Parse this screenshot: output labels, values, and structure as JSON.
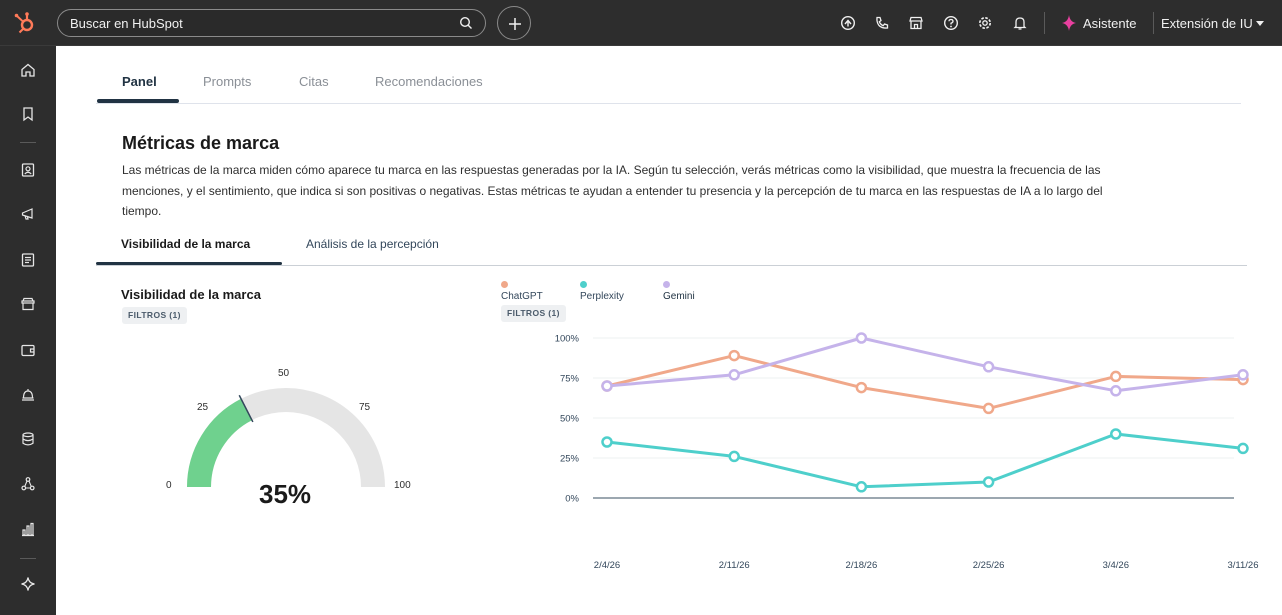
{
  "topbar": {
    "search_placeholder": "Buscar en HubSpot",
    "assistant_label": "Asistente",
    "extension_label": "Extensión de IU",
    "brand_color": "#ff7a59",
    "icons": [
      "upgrade-icon",
      "phone-icon",
      "marketplace-icon",
      "help-icon",
      "settings-icon",
      "notifications-icon"
    ]
  },
  "sidebar": {
    "icons": [
      "home-icon",
      "bookmark-icon",
      "contacts-icon",
      "marketing-icon",
      "content-icon",
      "commerce-icon",
      "wallet-icon",
      "service-icon",
      "data-icon",
      "automation-icon",
      "reports-icon",
      "ai-sparkle-icon"
    ]
  },
  "tabs": [
    {
      "label": "Panel",
      "active": true
    },
    {
      "label": "Prompts",
      "active": false
    },
    {
      "label": "Citas",
      "active": false
    },
    {
      "label": "Recomendaciones",
      "active": false
    }
  ],
  "section": {
    "title": "Métricas de marca",
    "description_lines": [
      "Las métricas de la marca miden cómo aparece tu marca en las respuestas generadas por la IA. Según tu selección, verás métricas como la visibilidad, que muestra la frecuencia de las",
      "menciones, y el sentimiento, que indica si son positivas o negativas. Estas métricas te ayudan a entender tu presencia y la percepción de tu marca en las respuestas de IA a lo largo del",
      "tiempo."
    ]
  },
  "subtabs": [
    {
      "label": "Visibilidad de la marca",
      "active": true
    },
    {
      "label": "Análisis de la percepción",
      "active": false
    }
  ],
  "gauge": {
    "title": "Visibilidad de la marca",
    "filter_chip": "FILTROS (1)",
    "value": 35,
    "value_label": "35%",
    "tick_labels": [
      "0",
      "25",
      "50",
      "75",
      "100"
    ],
    "fill_color": "#6fd18e",
    "track_color": "#e5e5e5"
  },
  "chart_data": {
    "type": "line",
    "filter_chip": "FILTROS (1)",
    "x": [
      "2/4/26",
      "2/11/26",
      "2/18/26",
      "2/25/26",
      "3/4/26",
      "3/11/26"
    ],
    "y_ticks": [
      "0%",
      "25%",
      "50%",
      "75%",
      "100%"
    ],
    "ylim": [
      0,
      100
    ],
    "grid": true,
    "legend_position": "top-left",
    "series": [
      {
        "name": "ChatGPT",
        "color": "#f0a88a",
        "values": [
          70,
          89,
          69,
          56,
          76,
          74
        ]
      },
      {
        "name": "Perplexity",
        "color": "#4ecfcb",
        "values": [
          35,
          26,
          7,
          10,
          40,
          31
        ]
      },
      {
        "name": "Gemini",
        "color": "#c5b3ea",
        "values": [
          70,
          77,
          100,
          82,
          67,
          77
        ]
      }
    ]
  }
}
